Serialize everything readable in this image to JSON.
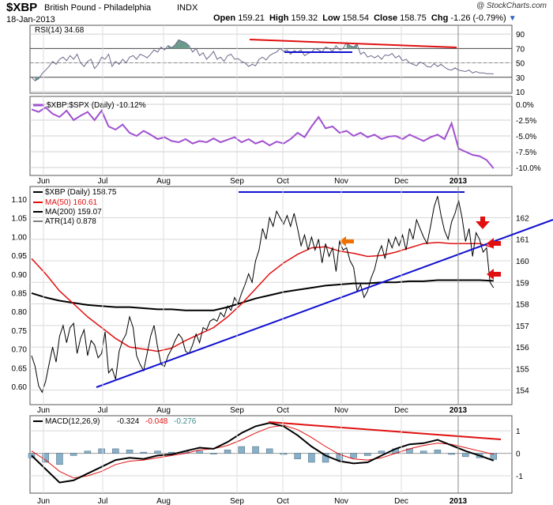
{
  "header": {
    "symbol": "$XBP",
    "name": "British Pound - Philadelphia",
    "exchange": "INDX",
    "date": "18-Jan-2013",
    "watermark": "@ StockCharts.com",
    "open_label": "Open",
    "open": "159.21",
    "high_label": "High",
    "high": "159.32",
    "low_label": "Low",
    "low": "158.54",
    "close_label": "Close",
    "close": "158.75",
    "chg_label": "Chg",
    "chg": "-1.26 (-0.79%)"
  },
  "colors": {
    "price": "#000000",
    "ma50": "#e01010",
    "ma200": "#000000",
    "trendline": "#1010d0",
    "annotation_red": "#e01010",
    "arrow_orange": "#f07000",
    "rsi": "#6a6a8a",
    "rs_line": "#a050d0",
    "macd_hist": "#88b0c8",
    "panel_bg": "#ffffff",
    "grid": "#c8c8c8"
  },
  "chart_data": [
    {
      "type": "line",
      "title": "RSI(14) 34.68",
      "x": [
        0,
        2,
        4,
        6,
        8,
        10,
        12,
        14,
        16,
        18,
        20,
        22,
        24,
        26,
        28,
        30,
        32,
        34,
        36,
        38,
        40,
        42,
        44,
        46,
        48,
        50,
        52,
        54,
        56,
        58,
        60,
        62,
        64,
        66,
        68,
        70,
        72,
        74,
        76,
        78,
        80,
        82,
        84,
        86,
        88,
        90,
        92,
        94,
        96,
        98,
        100,
        102,
        104,
        106,
        108,
        110,
        112,
        114,
        116,
        118,
        120,
        122,
        124,
        126,
        128,
        130,
        132,
        134,
        136,
        138,
        140,
        142,
        144,
        146,
        148,
        150,
        152,
        154,
        156,
        158,
        160,
        162,
        164,
        166,
        168,
        170,
        172,
        174,
        176,
        178,
        180,
        182,
        184,
        186,
        188,
        190,
        192,
        194,
        196,
        198,
        200,
        202,
        204,
        206,
        208,
        210,
        212,
        214,
        216,
        218,
        220,
        222,
        224,
        226,
        228,
        230,
        232,
        234,
        236,
        238,
        240,
        242,
        244,
        246,
        248,
        250,
        252,
        254,
        256,
        258,
        260,
        262,
        264
      ],
      "y": [
        30,
        25,
        28,
        35,
        40,
        45,
        52,
        48,
        55,
        58,
        53,
        60,
        55,
        62,
        50,
        45,
        52,
        55,
        42,
        48,
        58,
        55,
        62,
        45,
        52,
        48,
        55,
        50,
        58,
        60,
        55,
        62,
        60,
        57,
        62,
        68,
        65,
        72,
        68,
        74,
        71,
        75,
        82,
        80,
        78,
        74,
        65,
        70,
        60,
        64,
        55,
        60,
        66,
        55,
        58,
        52,
        60,
        62,
        55,
        56,
        52,
        50,
        45,
        48,
        46,
        55,
        58,
        54,
        60,
        63,
        65,
        70,
        66,
        68,
        62,
        67,
        65,
        68,
        60,
        63,
        65,
        70,
        68,
        65,
        72,
        70,
        66,
        74,
        68,
        70,
        78,
        74,
        72,
        76,
        62,
        65,
        58,
        60,
        57,
        60,
        55,
        61,
        60,
        63,
        57,
        60,
        53,
        55,
        50,
        48,
        46,
        51,
        49,
        45,
        44,
        49,
        45,
        48,
        44,
        41,
        40,
        43,
        40,
        39,
        38,
        40,
        36,
        38,
        36,
        36,
        35,
        35,
        34.68
      ],
      "ylim": [
        10,
        100
      ],
      "y_ticks": [
        10,
        30,
        50,
        70,
        90
      ],
      "overbought": 70,
      "oversold": 30
    },
    {
      "type": "line",
      "title": "$XBP:$SPX (Daily) -10.12%",
      "x": [
        0,
        4,
        8,
        12,
        16,
        20,
        24,
        28,
        32,
        36,
        40,
        44,
        48,
        52,
        56,
        60,
        64,
        68,
        72,
        76,
        80,
        84,
        88,
        92,
        96,
        100,
        104,
        108,
        112,
        116,
        120,
        124,
        128,
        132,
        136,
        140,
        144,
        148,
        152,
        156,
        160,
        164,
        168,
        172,
        176,
        180,
        184,
        188,
        192,
        196,
        200,
        204,
        208,
        212,
        216,
        220,
        224,
        228,
        232,
        236,
        240,
        244,
        248,
        252,
        256,
        260,
        264
      ],
      "y": [
        -0.8,
        -1.2,
        -0.5,
        -1.5,
        -2.0,
        -1.0,
        -2.5,
        -1.8,
        -1.2,
        -2.5,
        -1.0,
        -3.5,
        -4.0,
        -3.2,
        -4.5,
        -5.0,
        -4.2,
        -4.8,
        -5.5,
        -5.2,
        -5.8,
        -6.0,
        -5.5,
        -6.2,
        -5.8,
        -6.0,
        -5.4,
        -6.0,
        -5.6,
        -5.2,
        -6.0,
        -5.5,
        -6.2,
        -5.8,
        -6.5,
        -5.9,
        -6.2,
        -5.5,
        -4.5,
        -5.2,
        -3.5,
        -2.0,
        -3.8,
        -3.5,
        -4.5,
        -4.2,
        -5.0,
        -4.5,
        -5.2,
        -4.8,
        -5.5,
        -5.1,
        -5.0,
        -5.5,
        -4.8,
        -5.3,
        -5.8,
        -5.2,
        -4.8,
        -5.5,
        -3.0,
        -7.0,
        -7.5,
        -8.0,
        -8.2,
        -8.8,
        -10.12
      ],
      "ylim": [
        -11.0,
        1.0
      ],
      "y_ticks": [
        0.0,
        -2.5,
        -5.0,
        -7.5,
        -10.0
      ]
    },
    {
      "type": "line",
      "series": [
        {
          "name": "$XBP (Daily) 158.75",
          "x": [
            0,
            2,
            4,
            6,
            8,
            10,
            12,
            14,
            16,
            18,
            20,
            22,
            24,
            26,
            28,
            30,
            32,
            34,
            36,
            38,
            40,
            42,
            44,
            46,
            48,
            50,
            52,
            54,
            56,
            58,
            60,
            62,
            64,
            66,
            68,
            70,
            72,
            74,
            76,
            78,
            80,
            82,
            84,
            86,
            88,
            90,
            92,
            94,
            96,
            98,
            100,
            102,
            104,
            106,
            108,
            110,
            112,
            114,
            116,
            118,
            120,
            122,
            124,
            126,
            128,
            130,
            132,
            134,
            136,
            138,
            140,
            142,
            144,
            146,
            148,
            150,
            152,
            154,
            156,
            158,
            160,
            162,
            164,
            166,
            168,
            170,
            172,
            174,
            176,
            178,
            180,
            182,
            184,
            186,
            188,
            190,
            192,
            194,
            196,
            198,
            200,
            202,
            204,
            206,
            208,
            210,
            212,
            214,
            216,
            218,
            220,
            222,
            224,
            226,
            228,
            230,
            232,
            234,
            236,
            238,
            240,
            242,
            244,
            246,
            248,
            250,
            252,
            254,
            256,
            258,
            260,
            262,
            264
          ],
          "y": [
            155.6,
            155.1,
            154.2,
            153.9,
            154.4,
            155.2,
            156.0,
            155.3,
            156.5,
            157.0,
            156.2,
            156.9,
            157.1,
            155.7,
            156.4,
            156.8,
            155.6,
            156.3,
            156.1,
            155.5,
            155.7,
            156.7,
            154.8,
            155.0,
            154.5,
            155.8,
            156.3,
            156.6,
            157.4,
            156.9,
            155.6,
            155.2,
            154.9,
            155.7,
            156.5,
            157.0,
            156.0,
            155.2,
            155.1,
            155.6,
            155.9,
            156.3,
            156.6,
            156.4,
            155.8,
            155.7,
            156.1,
            156.6,
            156.2,
            156.9,
            156.8,
            157.2,
            157.3,
            157.2,
            157.6,
            157.4,
            157.9,
            157.7,
            158.3,
            158.0,
            158.5,
            158.9,
            159.4,
            159.0,
            160.0,
            160.5,
            161.5,
            161.0,
            162.0,
            161.6,
            162.3,
            162.0,
            161.7,
            162.1,
            161.6,
            162.2,
            161.5,
            160.7,
            161.2,
            160.5,
            161.1,
            160.5,
            161.0,
            159.9,
            160.8,
            160.2,
            160.6,
            159.5,
            160.9,
            160.5,
            160.6,
            160.0,
            159.7,
            158.6,
            158.9,
            158.3,
            158.6,
            159.2,
            159.6,
            160.3,
            160.7,
            160.1,
            161.0,
            160.6,
            161.1,
            160.7,
            161.2,
            160.5,
            161.5,
            161.0,
            161.9,
            161.5,
            161.1,
            160.8,
            161.6,
            162.5,
            163.0,
            162.1,
            161.4,
            161.0,
            161.8,
            162.2,
            162.8,
            162.0,
            160.9,
            161.5,
            160.2,
            161.3,
            161.0,
            160.4,
            160.6,
            159.0,
            158.75
          ]
        },
        {
          "name": "MA(50) 160.61",
          "x": [
            0,
            8,
            16,
            24,
            32,
            40,
            48,
            56,
            64,
            72,
            80,
            88,
            96,
            104,
            112,
            120,
            128,
            136,
            144,
            152,
            160,
            168,
            176,
            184,
            192,
            200,
            208,
            216,
            224,
            232,
            240,
            248,
            256,
            264
          ],
          "y": [
            160.1,
            159.4,
            158.6,
            158.0,
            157.4,
            156.9,
            156.4,
            156.0,
            155.9,
            155.8,
            155.95,
            156.3,
            156.6,
            156.9,
            157.4,
            158.0,
            158.7,
            159.4,
            159.9,
            160.3,
            160.6,
            160.65,
            160.45,
            160.35,
            160.2,
            160.25,
            160.4,
            160.6,
            160.8,
            160.85,
            160.8,
            160.8,
            160.8,
            160.61
          ],
          "color": "#e01010"
        },
        {
          "name": "MA(200) 159.07",
          "x": [
            0,
            8,
            16,
            24,
            32,
            40,
            48,
            56,
            64,
            72,
            80,
            88,
            96,
            104,
            112,
            120,
            128,
            136,
            144,
            152,
            160,
            168,
            176,
            184,
            192,
            200,
            208,
            216,
            224,
            232,
            240,
            248,
            256,
            264
          ],
          "y": [
            158.5,
            158.3,
            158.15,
            158.05,
            157.95,
            157.9,
            157.85,
            157.85,
            157.8,
            157.75,
            157.75,
            157.7,
            157.7,
            157.7,
            157.85,
            158.05,
            158.25,
            158.4,
            158.55,
            158.65,
            158.75,
            158.85,
            158.9,
            158.95,
            158.95,
            159.0,
            159.0,
            159.05,
            159.05,
            159.1,
            159.1,
            159.1,
            159.1,
            159.07
          ],
          "color": "#000000"
        }
      ],
      "atr_label": "ATR(14) 0.878",
      "left_axis": {
        "ticks": [
          0.6,
          0.65,
          0.7,
          0.75,
          0.8,
          0.85,
          0.9,
          0.95,
          1.0,
          1.05,
          1.1
        ],
        "labels": [
          "0.60",
          "0.65",
          "0.70",
          "0.75",
          "0.80",
          "0.85",
          "0.90",
          "0.95",
          "1.00",
          "1.05",
          "1.10"
        ]
      },
      "right_axis": {
        "ticks": [
          154,
          155,
          156,
          157,
          158,
          159,
          160,
          161,
          162
        ],
        "labels": [
          "154",
          "155",
          "156",
          "157",
          "158",
          "159",
          "160",
          "161",
          "162"
        ]
      },
      "ylim": [
        153.4,
        163.3
      ],
      "x_ticks": [
        {
          "x": 2,
          "label": "Jun",
          "bold": false
        },
        {
          "x": 42,
          "label": "Jul",
          "bold": false
        },
        {
          "x": 86,
          "label": "Aug",
          "bold": false
        },
        {
          "x": 132,
          "label": "Sep",
          "bold": false
        },
        {
          "x": 172,
          "label": "Oct",
          "bold": false
        },
        {
          "x": 218,
          "label": "Nov",
          "bold": false
        },
        {
          "x": 260,
          "label": "Dec",
          "bold": false
        },
        {
          "x": 300,
          "label": "2013",
          "bold": true
        }
      ]
    },
    {
      "type": "line",
      "title": "MACD(12,26,9)",
      "legend": {
        "macd": "-0.324",
        "signal": "-0.048",
        "histogram": "-0.276"
      },
      "x": [
        0,
        8,
        16,
        24,
        32,
        40,
        48,
        56,
        64,
        72,
        80,
        88,
        96,
        104,
        112,
        120,
        128,
        136,
        144,
        152,
        160,
        168,
        176,
        184,
        192,
        200,
        208,
        216,
        224,
        232,
        240,
        248,
        256,
        264
      ],
      "macd": [
        -0.1,
        -0.7,
        -1.3,
        -1.2,
        -0.9,
        -0.6,
        -0.3,
        -0.2,
        -0.25,
        -0.1,
        -0.05,
        0.1,
        0.25,
        0.2,
        0.5,
        0.9,
        1.2,
        1.35,
        1.2,
        0.8,
        0.3,
        -0.1,
        -0.35,
        -0.45,
        -0.4,
        -0.1,
        0.2,
        0.4,
        0.45,
        0.6,
        0.35,
        0.1,
        -0.1,
        -0.324
      ],
      "signal": [
        0.1,
        -0.3,
        -0.8,
        -1.1,
        -1.0,
        -0.8,
        -0.5,
        -0.35,
        -0.3,
        -0.2,
        -0.1,
        0.0,
        0.15,
        0.2,
        0.35,
        0.6,
        0.9,
        1.15,
        1.25,
        1.05,
        0.7,
        0.3,
        -0.05,
        -0.25,
        -0.3,
        -0.2,
        0.0,
        0.2,
        0.35,
        0.45,
        0.4,
        0.25,
        0.1,
        -0.048
      ],
      "histogram": [
        -0.2,
        -0.4,
        -0.5,
        -0.1,
        0.1,
        0.2,
        0.2,
        0.15,
        0.05,
        0.1,
        0.05,
        0.1,
        0.1,
        0.0,
        0.15,
        0.3,
        0.3,
        0.2,
        -0.05,
        -0.25,
        -0.4,
        -0.4,
        -0.3,
        -0.2,
        -0.1,
        0.1,
        0.2,
        0.2,
        0.1,
        0.15,
        -0.05,
        -0.15,
        -0.2,
        -0.276
      ],
      "ylim": [
        -1.7,
        1.6
      ],
      "y_ticks": [
        -1,
        0,
        1
      ]
    }
  ]
}
